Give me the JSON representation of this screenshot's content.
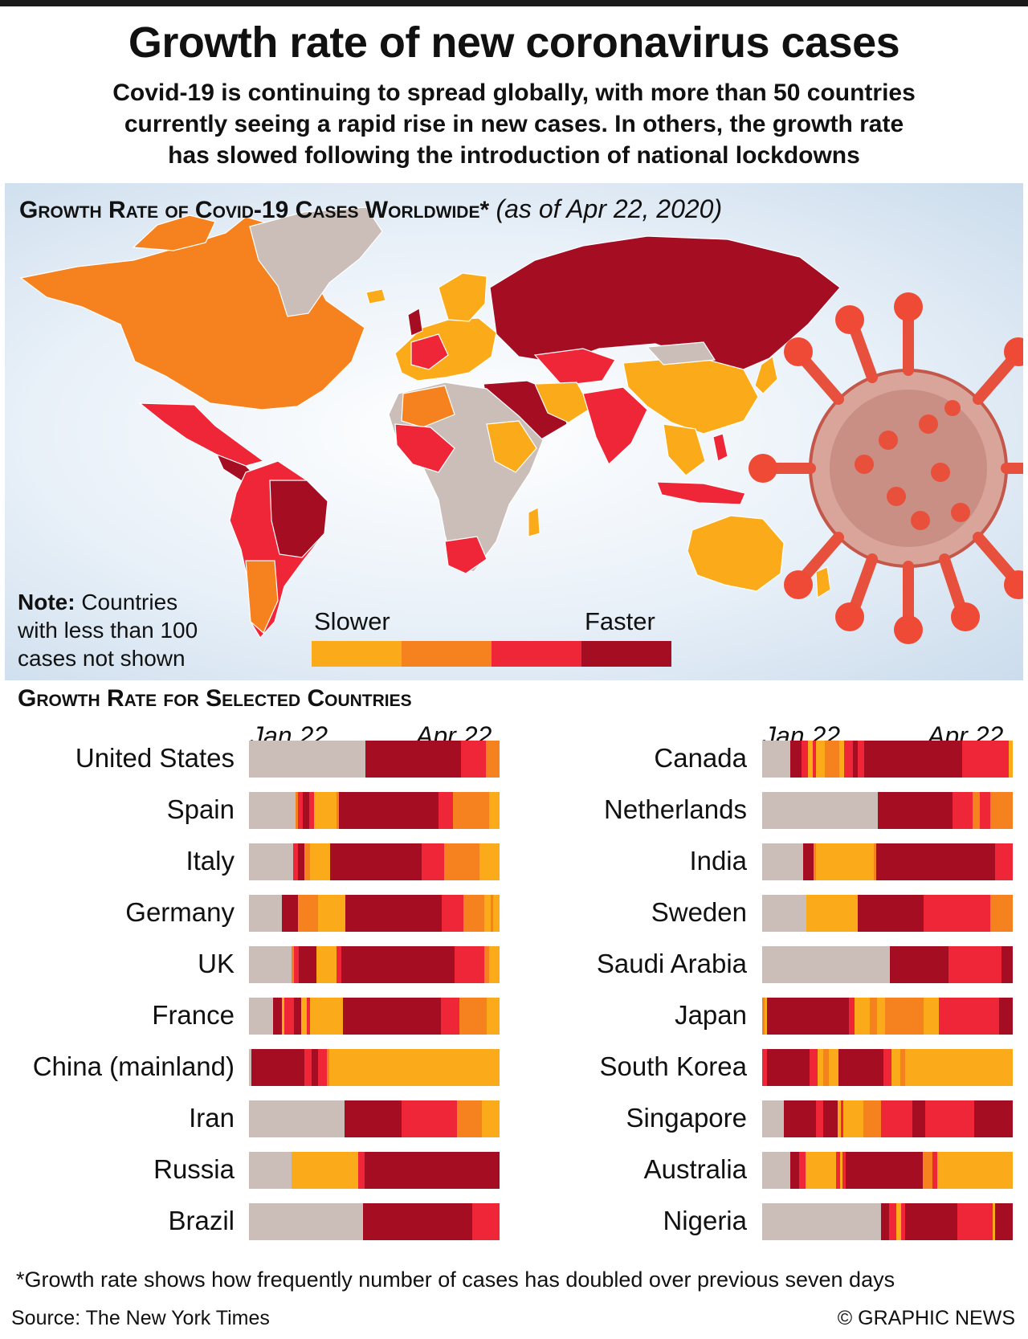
{
  "title": "Growth rate of new coronavirus cases",
  "subtitle_lines": [
    "Covid-19 is continuing to spread globally, with more than 50 countries",
    "currently seeing a rapid rise in new cases. In others, the growth rate",
    "has slowed following the introduction of national lockdowns"
  ],
  "map": {
    "heading": "Growth Rate of Covid-19 Cases Worldwide*",
    "date": "(as of Apr 22, 2020)",
    "note_bold": "Note:",
    "note_lines": [
      "Countries",
      "with less than 100",
      "cases not shown"
    ],
    "legend_slower": "Slower",
    "legend_faster": "Faster"
  },
  "colors": {
    "none": "#cbbdb8",
    "slower": "#fbab1a",
    "slow": "#f5821f",
    "fast": "#ef2638",
    "faster": "#a50d23"
  },
  "selected": {
    "heading": "Growth Rate for Selected Countries",
    "date_start": "Jan 22",
    "date_end": "Apr 22"
  },
  "chart_data": {
    "type": "bar",
    "stacked": "timeline",
    "x": [
      "Jan 22",
      "Apr 22"
    ],
    "levels": [
      "none",
      "slower",
      "slow",
      "fast",
      "faster"
    ],
    "legend": [
      "Slower",
      "Faster"
    ],
    "series": [
      {
        "name": "United States",
        "segments": [
          [
            "none",
            0.465
          ],
          [
            "faster",
            0.38
          ],
          [
            "fast",
            0.1
          ],
          [
            "slow",
            0.055
          ]
        ]
      },
      {
        "name": "Spain",
        "segments": [
          [
            "none",
            0.185
          ],
          [
            "slow",
            0.01
          ],
          [
            "fast",
            0.02
          ],
          [
            "faster",
            0.025
          ],
          [
            "fast",
            0.02
          ],
          [
            "slower",
            0.09
          ],
          [
            "slow",
            0.01
          ],
          [
            "faster",
            0.395
          ],
          [
            "fast",
            0.06
          ],
          [
            "slow",
            0.145
          ],
          [
            "slower",
            0.04
          ]
        ]
      },
      {
        "name": "Italy",
        "segments": [
          [
            "none",
            0.175
          ],
          [
            "fast",
            0.02
          ],
          [
            "faster",
            0.025
          ],
          [
            "slow",
            0.025
          ],
          [
            "slower",
            0.08
          ],
          [
            "faster",
            0.365
          ],
          [
            "fast",
            0.09
          ],
          [
            "slow",
            0.14
          ],
          [
            "slower",
            0.08
          ]
        ]
      },
      {
        "name": "Germany",
        "segments": [
          [
            "none",
            0.13
          ],
          [
            "faster",
            0.065
          ],
          [
            "slow",
            0.08
          ],
          [
            "slower",
            0.11
          ],
          [
            "faster",
            0.385
          ],
          [
            "fast",
            0.085
          ],
          [
            "slow",
            0.085
          ],
          [
            "slower",
            0.025
          ],
          [
            "slow",
            0.01
          ],
          [
            "slower",
            0.025
          ]
        ]
      },
      {
        "name": "UK",
        "segments": [
          [
            "none",
            0.17
          ],
          [
            "slow",
            0.01
          ],
          [
            "fast",
            0.02
          ],
          [
            "faster",
            0.07
          ],
          [
            "slower",
            0.08
          ],
          [
            "fast",
            0.02
          ],
          [
            "faster",
            0.45
          ],
          [
            "fast",
            0.12
          ],
          [
            "slow",
            0.02
          ],
          [
            "slower",
            0.04
          ]
        ]
      },
      {
        "name": "France",
        "segments": [
          [
            "none",
            0.095
          ],
          [
            "faster",
            0.035
          ],
          [
            "slower",
            0.01
          ],
          [
            "fast",
            0.04
          ],
          [
            "faster",
            0.03
          ],
          [
            "slower",
            0.02
          ],
          [
            "fast",
            0.015
          ],
          [
            "slower",
            0.13
          ],
          [
            "faster",
            0.39
          ],
          [
            "fast",
            0.075
          ],
          [
            "slow",
            0.11
          ],
          [
            "slower",
            0.05
          ]
        ]
      },
      {
        "name": "China (mainland)",
        "segments": [
          [
            "none",
            0.01
          ],
          [
            "faster",
            0.21
          ],
          [
            "fast",
            0.03
          ],
          [
            "faster",
            0.025
          ],
          [
            "fast",
            0.035
          ],
          [
            "slow",
            0.01
          ],
          [
            "slower",
            0.68
          ]
        ]
      },
      {
        "name": "Iran",
        "segments": [
          [
            "none",
            0.38
          ],
          [
            "faster",
            0.23
          ],
          [
            "fast",
            0.22
          ],
          [
            "slow",
            0.1
          ],
          [
            "slower",
            0.07
          ]
        ]
      },
      {
        "name": "Russia",
        "segments": [
          [
            "none",
            0.17
          ],
          [
            "slower",
            0.265
          ],
          [
            "fast",
            0.025
          ],
          [
            "faster",
            0.54
          ]
        ]
      },
      {
        "name": "Brazil",
        "segments": [
          [
            "none",
            0.455
          ],
          [
            "faster",
            0.435
          ],
          [
            "fast",
            0.11
          ]
        ]
      },
      {
        "name": "Canada",
        "segments": [
          [
            "none",
            0.115
          ],
          [
            "faster",
            0.045
          ],
          [
            "fast",
            0.025
          ],
          [
            "slower",
            0.02
          ],
          [
            "fast",
            0.015
          ],
          [
            "slower",
            0.035
          ],
          [
            "slow",
            0.06
          ],
          [
            "slower",
            0.02
          ],
          [
            "fast",
            0.035
          ],
          [
            "faster",
            0.02
          ],
          [
            "fast",
            0.025
          ],
          [
            "faster",
            0.4
          ],
          [
            "fast",
            0.19
          ],
          [
            "slower",
            0.015
          ]
        ]
      },
      {
        "name": "Netherlands",
        "segments": [
          [
            "none",
            0.46
          ],
          [
            "faster",
            0.3
          ],
          [
            "fast",
            0.08
          ],
          [
            "slow",
            0.03
          ],
          [
            "fast",
            0.04
          ],
          [
            "slow",
            0.09
          ]
        ]
      },
      {
        "name": "India",
        "segments": [
          [
            "none",
            0.165
          ],
          [
            "faster",
            0.04
          ],
          [
            "slow",
            0.01
          ],
          [
            "slower",
            0.23
          ],
          [
            "slow",
            0.01
          ],
          [
            "faster",
            0.475
          ],
          [
            "fast",
            0.07
          ]
        ]
      },
      {
        "name": "Sweden",
        "segments": [
          [
            "none",
            0.175
          ],
          [
            "slower",
            0.205
          ],
          [
            "faster",
            0.265
          ],
          [
            "fast",
            0.265
          ],
          [
            "slow",
            0.09
          ]
        ]
      },
      {
        "name": "Saudi Arabia",
        "segments": [
          [
            "none",
            0.51
          ],
          [
            "faster",
            0.235
          ],
          [
            "fast",
            0.21
          ],
          [
            "faster",
            0.045
          ]
        ]
      },
      {
        "name": "Japan",
        "segments": [
          [
            "slow",
            0.01
          ],
          [
            "slower",
            0.01
          ],
          [
            "faster",
            0.325
          ],
          [
            "fast",
            0.025
          ],
          [
            "slower",
            0.06
          ],
          [
            "slow",
            0.03
          ],
          [
            "slower",
            0.03
          ],
          [
            "slow",
            0.155
          ],
          [
            "slower",
            0.06
          ],
          [
            "fast",
            0.24
          ],
          [
            "faster",
            0.055
          ]
        ]
      },
      {
        "name": "South Korea",
        "segments": [
          [
            "fast",
            0.02
          ],
          [
            "faster",
            0.17
          ],
          [
            "fast",
            0.03
          ],
          [
            "slower",
            0.025
          ],
          [
            "slow",
            0.02
          ],
          [
            "slower",
            0.04
          ],
          [
            "faster",
            0.18
          ],
          [
            "fast",
            0.03
          ],
          [
            "slower",
            0.035
          ],
          [
            "slow",
            0.02
          ],
          [
            "slower",
            0.43
          ]
        ]
      },
      {
        "name": "Singapore",
        "segments": [
          [
            "none",
            0.085
          ],
          [
            "faster",
            0.13
          ],
          [
            "fast",
            0.03
          ],
          [
            "faster",
            0.055
          ],
          [
            "slower",
            0.015
          ],
          [
            "fast",
            0.01
          ],
          [
            "slower",
            0.08
          ],
          [
            "slow",
            0.07
          ],
          [
            "fast",
            0.125
          ],
          [
            "faster",
            0.05
          ],
          [
            "fast",
            0.195
          ],
          [
            "faster",
            0.155
          ]
        ]
      },
      {
        "name": "Australia",
        "segments": [
          [
            "none",
            0.115
          ],
          [
            "faster",
            0.035
          ],
          [
            "fast",
            0.025
          ],
          [
            "slower",
            0.125
          ],
          [
            "fast",
            0.015
          ],
          [
            "slower",
            0.01
          ],
          [
            "fast",
            0.015
          ],
          [
            "faster",
            0.31
          ],
          [
            "slow",
            0.04
          ],
          [
            "fast",
            0.02
          ],
          [
            "slower",
            0.15
          ],
          [
            "slower",
            0.155
          ]
        ]
      },
      {
        "name": "Nigeria",
        "segments": [
          [
            "none",
            0.475
          ],
          [
            "faster",
            0.03
          ],
          [
            "fast",
            0.03
          ],
          [
            "slower",
            0.02
          ],
          [
            "fast",
            0.015
          ],
          [
            "faster",
            0.21
          ],
          [
            "fast",
            0.14
          ],
          [
            "slower",
            0.01
          ],
          [
            "faster",
            0.07
          ]
        ]
      }
    ]
  },
  "footnote": "*Growth rate shows how frequently number of cases has doubled over previous seven days",
  "source": "Source: The New York Times",
  "credit": "© GRAPHIC NEWS"
}
